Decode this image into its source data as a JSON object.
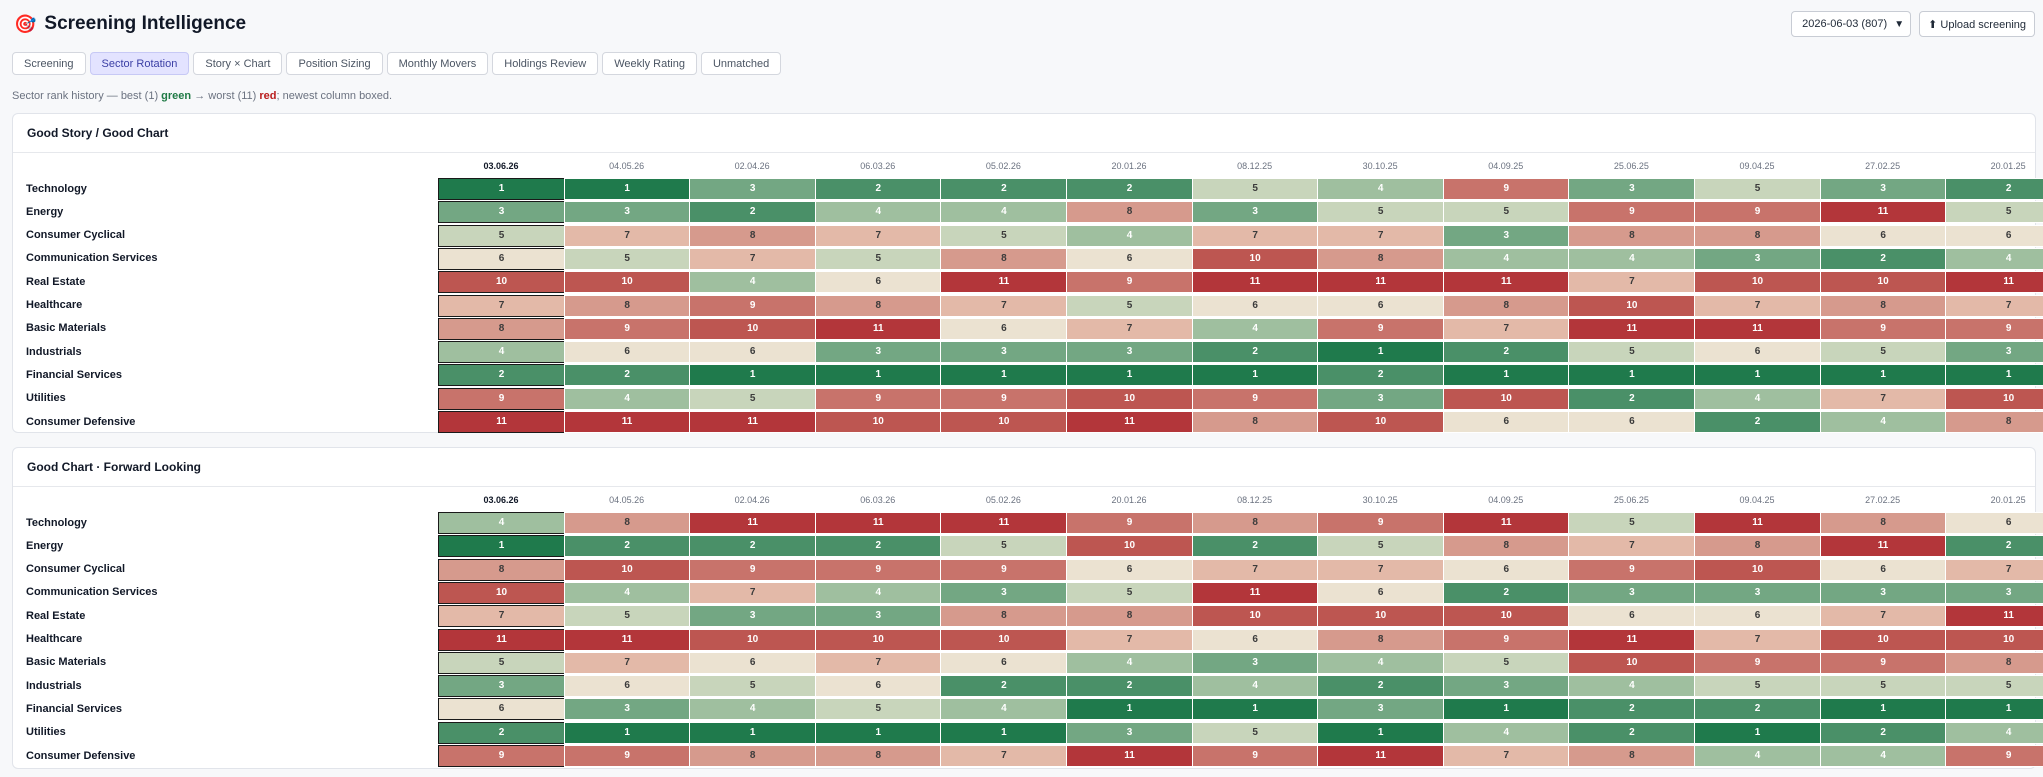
{
  "app": {
    "logo_icon": "target-icon",
    "title": "Screening Intelligence"
  },
  "controls": {
    "date_value": "2026-06-03 (807)",
    "upload_label": "⬆ Upload screening"
  },
  "tabs": [
    {
      "label": "Screening",
      "active": false
    },
    {
      "label": "Sector Rotation",
      "active": true
    },
    {
      "label": "Story × Chart",
      "active": false
    },
    {
      "label": "Position Sizing",
      "active": false
    },
    {
      "label": "Monthly Movers",
      "active": false
    },
    {
      "label": "Holdings Review",
      "active": false
    },
    {
      "label": "Weekly Rating",
      "active": false
    },
    {
      "label": "Unmatched",
      "active": false
    }
  ],
  "subtitle": {
    "prefix": "Sector rank history — best (1) ",
    "green_word": "green",
    "middle": " → worst (11) ",
    "red_word": "red",
    "suffix": "; newest column boxed."
  },
  "dates": [
    "03.06.26",
    "04.05.26",
    "02.04.26",
    "06.03.26",
    "05.02.26",
    "20.01.26",
    "08.12.25",
    "30.10.25",
    "04.09.25",
    "25.06.25",
    "09.04.25",
    "27.02.25",
    "20.01.25"
  ],
  "sectors": [
    "Technology",
    "Energy",
    "Consumer Cyclical",
    "Communication Services",
    "Real Estate",
    "Healthcare",
    "Basic Materials",
    "Industrials",
    "Financial Services",
    "Utilities",
    "Consumer Defensive"
  ],
  "color_scale": {
    "1": "#1f7a4c",
    "2": "#4a9068",
    "3": "#73a783",
    "4": "#9fbf9f",
    "5": "#c8d5bb",
    "6": "#ebe2d1",
    "7": "#e3b9a8",
    "8": "#d69a8d",
    "9": "#c8736b",
    "10": "#bd5651",
    "11": "#b3363a"
  },
  "panels": [
    {
      "title": "Good Story / Good Chart",
      "ranks": [
        [
          1,
          1,
          3,
          2,
          2,
          2,
          5,
          4,
          9,
          3,
          5,
          3,
          2
        ],
        [
          3,
          3,
          2,
          4,
          4,
          8,
          3,
          5,
          5,
          9,
          9,
          11,
          5
        ],
        [
          5,
          7,
          8,
          7,
          5,
          4,
          7,
          7,
          3,
          8,
          8,
          6,
          6
        ],
        [
          6,
          5,
          7,
          5,
          8,
          6,
          10,
          8,
          4,
          4,
          3,
          2,
          4
        ],
        [
          10,
          10,
          4,
          6,
          11,
          9,
          11,
          11,
          11,
          7,
          10,
          10,
          11
        ],
        [
          7,
          8,
          9,
          8,
          7,
          5,
          6,
          6,
          8,
          10,
          7,
          8,
          7
        ],
        [
          8,
          9,
          10,
          11,
          6,
          7,
          4,
          9,
          7,
          11,
          11,
          9,
          9
        ],
        [
          4,
          6,
          6,
          3,
          3,
          3,
          2,
          1,
          2,
          5,
          6,
          5,
          3
        ],
        [
          2,
          2,
          1,
          1,
          1,
          1,
          1,
          2,
          1,
          1,
          1,
          1,
          1
        ],
        [
          9,
          4,
          5,
          9,
          9,
          10,
          9,
          3,
          10,
          2,
          4,
          7,
          10
        ],
        [
          11,
          11,
          11,
          10,
          10,
          11,
          8,
          10,
          6,
          6,
          2,
          4,
          8
        ]
      ]
    },
    {
      "title": "Good Chart · Forward Looking",
      "ranks": [
        [
          4,
          8,
          11,
          11,
          11,
          9,
          8,
          9,
          11,
          5,
          11,
          8,
          6
        ],
        [
          1,
          2,
          2,
          2,
          5,
          10,
          2,
          5,
          8,
          7,
          8,
          11,
          2
        ],
        [
          8,
          10,
          9,
          9,
          9,
          6,
          7,
          7,
          6,
          9,
          10,
          6,
          7
        ],
        [
          10,
          4,
          7,
          4,
          3,
          5,
          11,
          6,
          2,
          3,
          3,
          3,
          3
        ],
        [
          7,
          5,
          3,
          3,
          8,
          8,
          10,
          10,
          10,
          6,
          6,
          7,
          11
        ],
        [
          11,
          11,
          10,
          10,
          10,
          7,
          6,
          8,
          9,
          11,
          7,
          10,
          10
        ],
        [
          5,
          7,
          6,
          7,
          6,
          4,
          3,
          4,
          5,
          10,
          9,
          9,
          8
        ],
        [
          3,
          6,
          5,
          6,
          2,
          2,
          4,
          2,
          3,
          4,
          5,
          5,
          5
        ],
        [
          6,
          3,
          4,
          5,
          4,
          1,
          1,
          3,
          1,
          2,
          2,
          1,
          1
        ],
        [
          2,
          1,
          1,
          1,
          1,
          3,
          5,
          1,
          4,
          2,
          1,
          2,
          4
        ],
        [
          9,
          9,
          8,
          8,
          7,
          11,
          9,
          11,
          7,
          8,
          4,
          4,
          9
        ]
      ]
    }
  ]
}
